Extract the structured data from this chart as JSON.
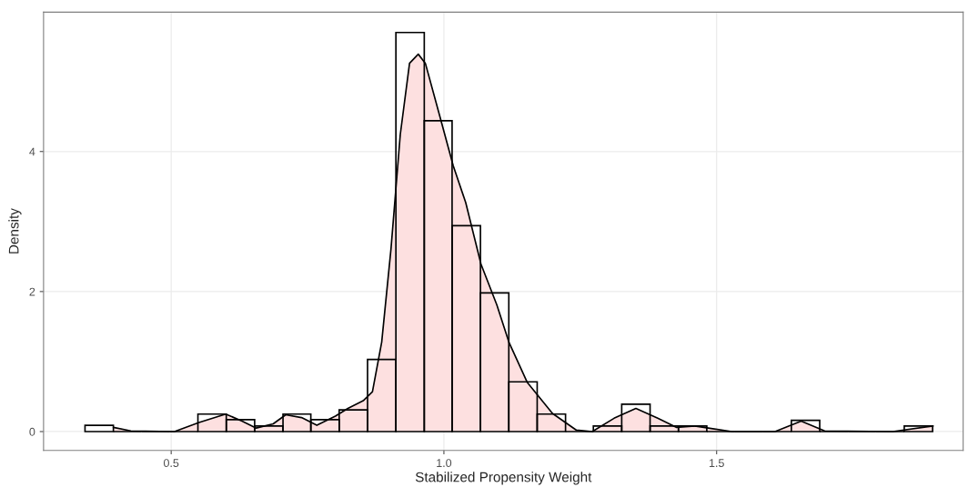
{
  "chart_data": {
    "type": "histogram",
    "xlabel": "Stabilized Propensity Weight",
    "ylabel": "Density",
    "bins": [
      0.342,
      0.394,
      0.446,
      0.497,
      0.549,
      0.601,
      0.653,
      0.705,
      0.756,
      0.808,
      0.86,
      0.912,
      0.964,
      1.015,
      1.067,
      1.119,
      1.171,
      1.223,
      1.274,
      1.326,
      1.378,
      1.43,
      1.482,
      1.533,
      1.585,
      1.637,
      1.689,
      1.741,
      1.792,
      1.844,
      1.896
    ],
    "values": [
      0.09,
      0,
      0,
      0,
      0.25,
      0.17,
      0.08,
      0.25,
      0.17,
      0.31,
      1.03,
      5.7,
      4.44,
      2.94,
      1.98,
      0.71,
      0.25,
      0,
      0.08,
      0.39,
      0.08,
      0.08,
      0,
      0,
      0,
      0.16,
      0,
      0,
      0,
      0.08
    ],
    "color": "#000000",
    "series": [
      {
        "type": "area",
        "color": "#fde0e0",
        "x": [
          0.394,
          0.426,
          0.506,
          0.551,
          0.6,
          0.63,
          0.656,
          0.687,
          0.71,
          0.739,
          0.767,
          0.801,
          0.824,
          0.852,
          0.869,
          0.886,
          0.903,
          0.92,
          0.937,
          0.953,
          0.966,
          0.994,
          1.017,
          1.04,
          1.068,
          1.097,
          1.119,
          1.153,
          1.199,
          1.243,
          1.272,
          1.312,
          1.352,
          1.392,
          1.426,
          1.46,
          1.493,
          1.528,
          1.607,
          1.655,
          1.698,
          1.823,
          1.897
        ],
        "values": [
          0.06,
          0.01,
          0,
          0.13,
          0.25,
          0.15,
          0.05,
          0.11,
          0.24,
          0.2,
          0.09,
          0.22,
          0.33,
          0.44,
          0.57,
          1.28,
          2.61,
          4.24,
          5.26,
          5.39,
          5.26,
          4.46,
          3.8,
          3.27,
          2.39,
          1.81,
          1.28,
          0.7,
          0.26,
          0.02,
          0,
          0.19,
          0.33,
          0.19,
          0.06,
          0.08,
          0.04,
          0,
          0,
          0.15,
          0.01,
          0,
          0.08
        ]
      }
    ],
    "xlim": [
      0.266,
      1.952
    ],
    "ylim": [
      -0.27,
      5.99
    ],
    "xticks": [
      0.5,
      {
        "value": 1.0,
        "label": "1.0"
      },
      1.5
    ],
    "yticks": [
      0,
      2,
      4
    ],
    "grid": true
  }
}
